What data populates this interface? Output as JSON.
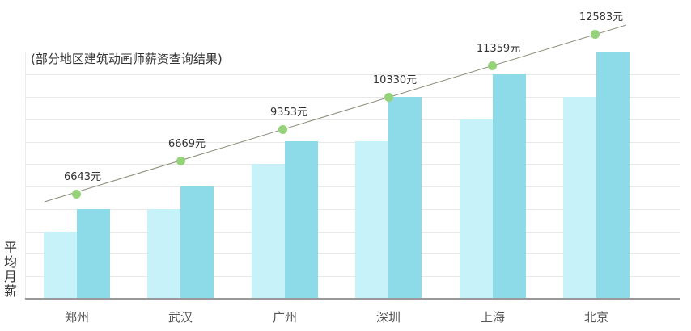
{
  "chart_data": {
    "type": "bar",
    "title": "",
    "subtitle": "(部分地区建筑动画师薪资查询结果)",
    "xlabel": "",
    "ylabel": "平均月薪",
    "categories": [
      "郑州",
      "武汉",
      "广州",
      "深圳",
      "上海",
      "北京"
    ],
    "series": [
      {
        "name": "light-bar",
        "color": "#c8f2f9",
        "values": [
          3,
          4,
          6,
          7,
          8,
          9
        ]
      },
      {
        "name": "dark-bar",
        "color": "#8ddbe8",
        "values": [
          4,
          5,
          7,
          9,
          10,
          11
        ]
      },
      {
        "name": "平均月薪趋势",
        "type": "line",
        "color": "#95d27a",
        "values": [
          6643,
          6669,
          9353,
          10330,
          11359,
          12583
        ]
      }
    ],
    "value_labels": [
      "6643元",
      "6669元",
      "9353元",
      "10330元",
      "11359元",
      "12583元"
    ],
    "grid": true,
    "gridline_count": 11,
    "legend": "none"
  },
  "labels": {
    "subtitle": "(部分地区建筑动画师薪资查询结果)",
    "ylabel_chars": [
      "平",
      "均",
      "月",
      "薪"
    ],
    "categories": [
      "郑州",
      "武汉",
      "广州",
      "深圳",
      "上海",
      "北京"
    ],
    "values": [
      "6643元",
      "6669元",
      "9353元",
      "10330元",
      "11359元",
      "12583元"
    ]
  }
}
